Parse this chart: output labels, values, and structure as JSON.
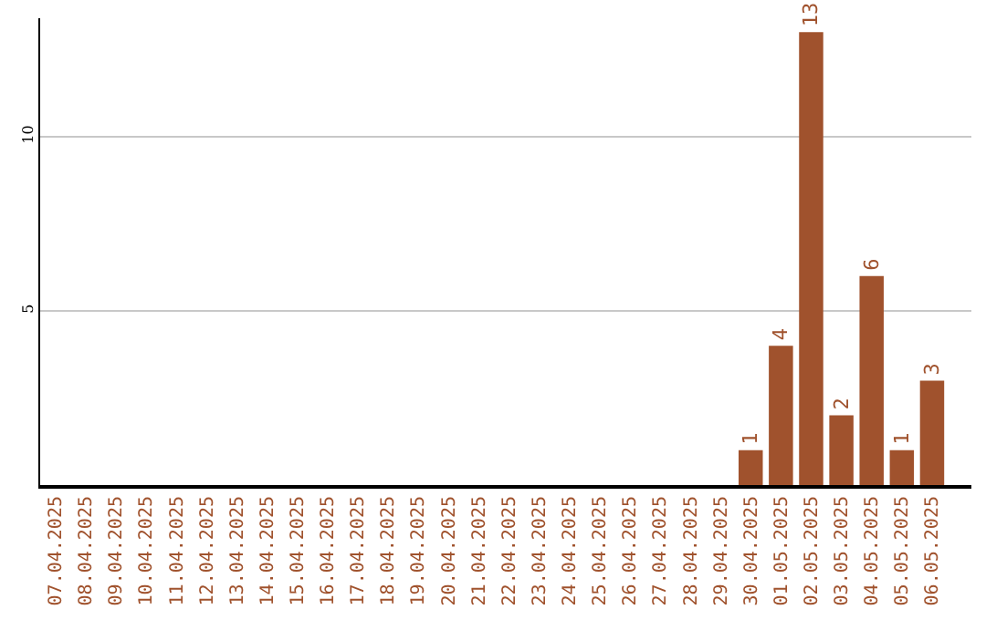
{
  "chart_data": {
    "type": "bar",
    "categories": [
      "07.04.2025",
      "08.04.2025",
      "09.04.2025",
      "10.04.2025",
      "11.04.2025",
      "12.04.2025",
      "13.04.2025",
      "14.04.2025",
      "15.04.2025",
      "16.04.2025",
      "17.04.2025",
      "18.04.2025",
      "19.04.2025",
      "20.04.2025",
      "21.04.2025",
      "22.04.2025",
      "23.04.2025",
      "24.04.2025",
      "25.04.2025",
      "26.04.2025",
      "27.04.2025",
      "28.04.2025",
      "29.04.2025",
      "30.04.2025",
      "01.05.2025",
      "02.05.2025",
      "03.05.2025",
      "04.05.2025",
      "05.05.2025",
      "06.05.2025"
    ],
    "values": [
      0,
      0,
      0,
      0,
      0,
      0,
      0,
      0,
      0,
      0,
      0,
      0,
      0,
      0,
      0,
      0,
      0,
      0,
      0,
      0,
      0,
      0,
      0,
      1,
      4,
      13,
      2,
      6,
      1,
      3
    ],
    "value_labels": [
      null,
      null,
      null,
      null,
      null,
      null,
      null,
      null,
      null,
      null,
      null,
      null,
      null,
      null,
      null,
      null,
      null,
      null,
      null,
      null,
      null,
      null,
      null,
      "1",
      "4",
      "13",
      "2",
      "6",
      "1",
      "3"
    ],
    "color": "#a0522d",
    "ylim": [
      0,
      13.4
    ],
    "yticks": [
      5,
      10
    ],
    "grid": "y"
  }
}
